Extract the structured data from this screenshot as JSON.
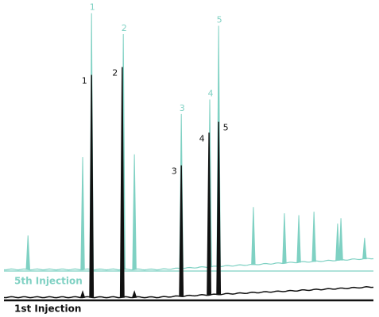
{
  "chart_data": {
    "type": "chromatogram",
    "xlim": [
      0,
      100
    ],
    "ylim": [
      0,
      100
    ],
    "series": [
      {
        "name": "5th Injection",
        "color": "#7fd1c3",
        "x": [
          6.5,
          21.3,
          23.7,
          32.3,
          35.3,
          48.0,
          55.7,
          58.1,
          67.5,
          75.9,
          79.8,
          83.9,
          90.3,
          91.2,
          97.6
        ],
        "values": [
          13,
          43,
          98,
          90,
          44,
          59,
          64,
          92,
          22,
          19,
          18,
          19,
          14,
          16,
          8
        ],
        "labels": [
          null,
          null,
          "1",
          "2",
          null,
          "3",
          "4",
          "5",
          null,
          null,
          null,
          null,
          null,
          null,
          null
        ]
      },
      {
        "name": "1st Injection",
        "color": "#111111",
        "x": [
          21.3,
          23.7,
          32.0,
          35.3,
          48.0,
          55.5,
          58.1
        ],
        "values": [
          2,
          85,
          88,
          2,
          50,
          62,
          66
        ],
        "labels": [
          null,
          "1",
          "2",
          null,
          "3",
          "4",
          "5"
        ]
      }
    ]
  }
}
